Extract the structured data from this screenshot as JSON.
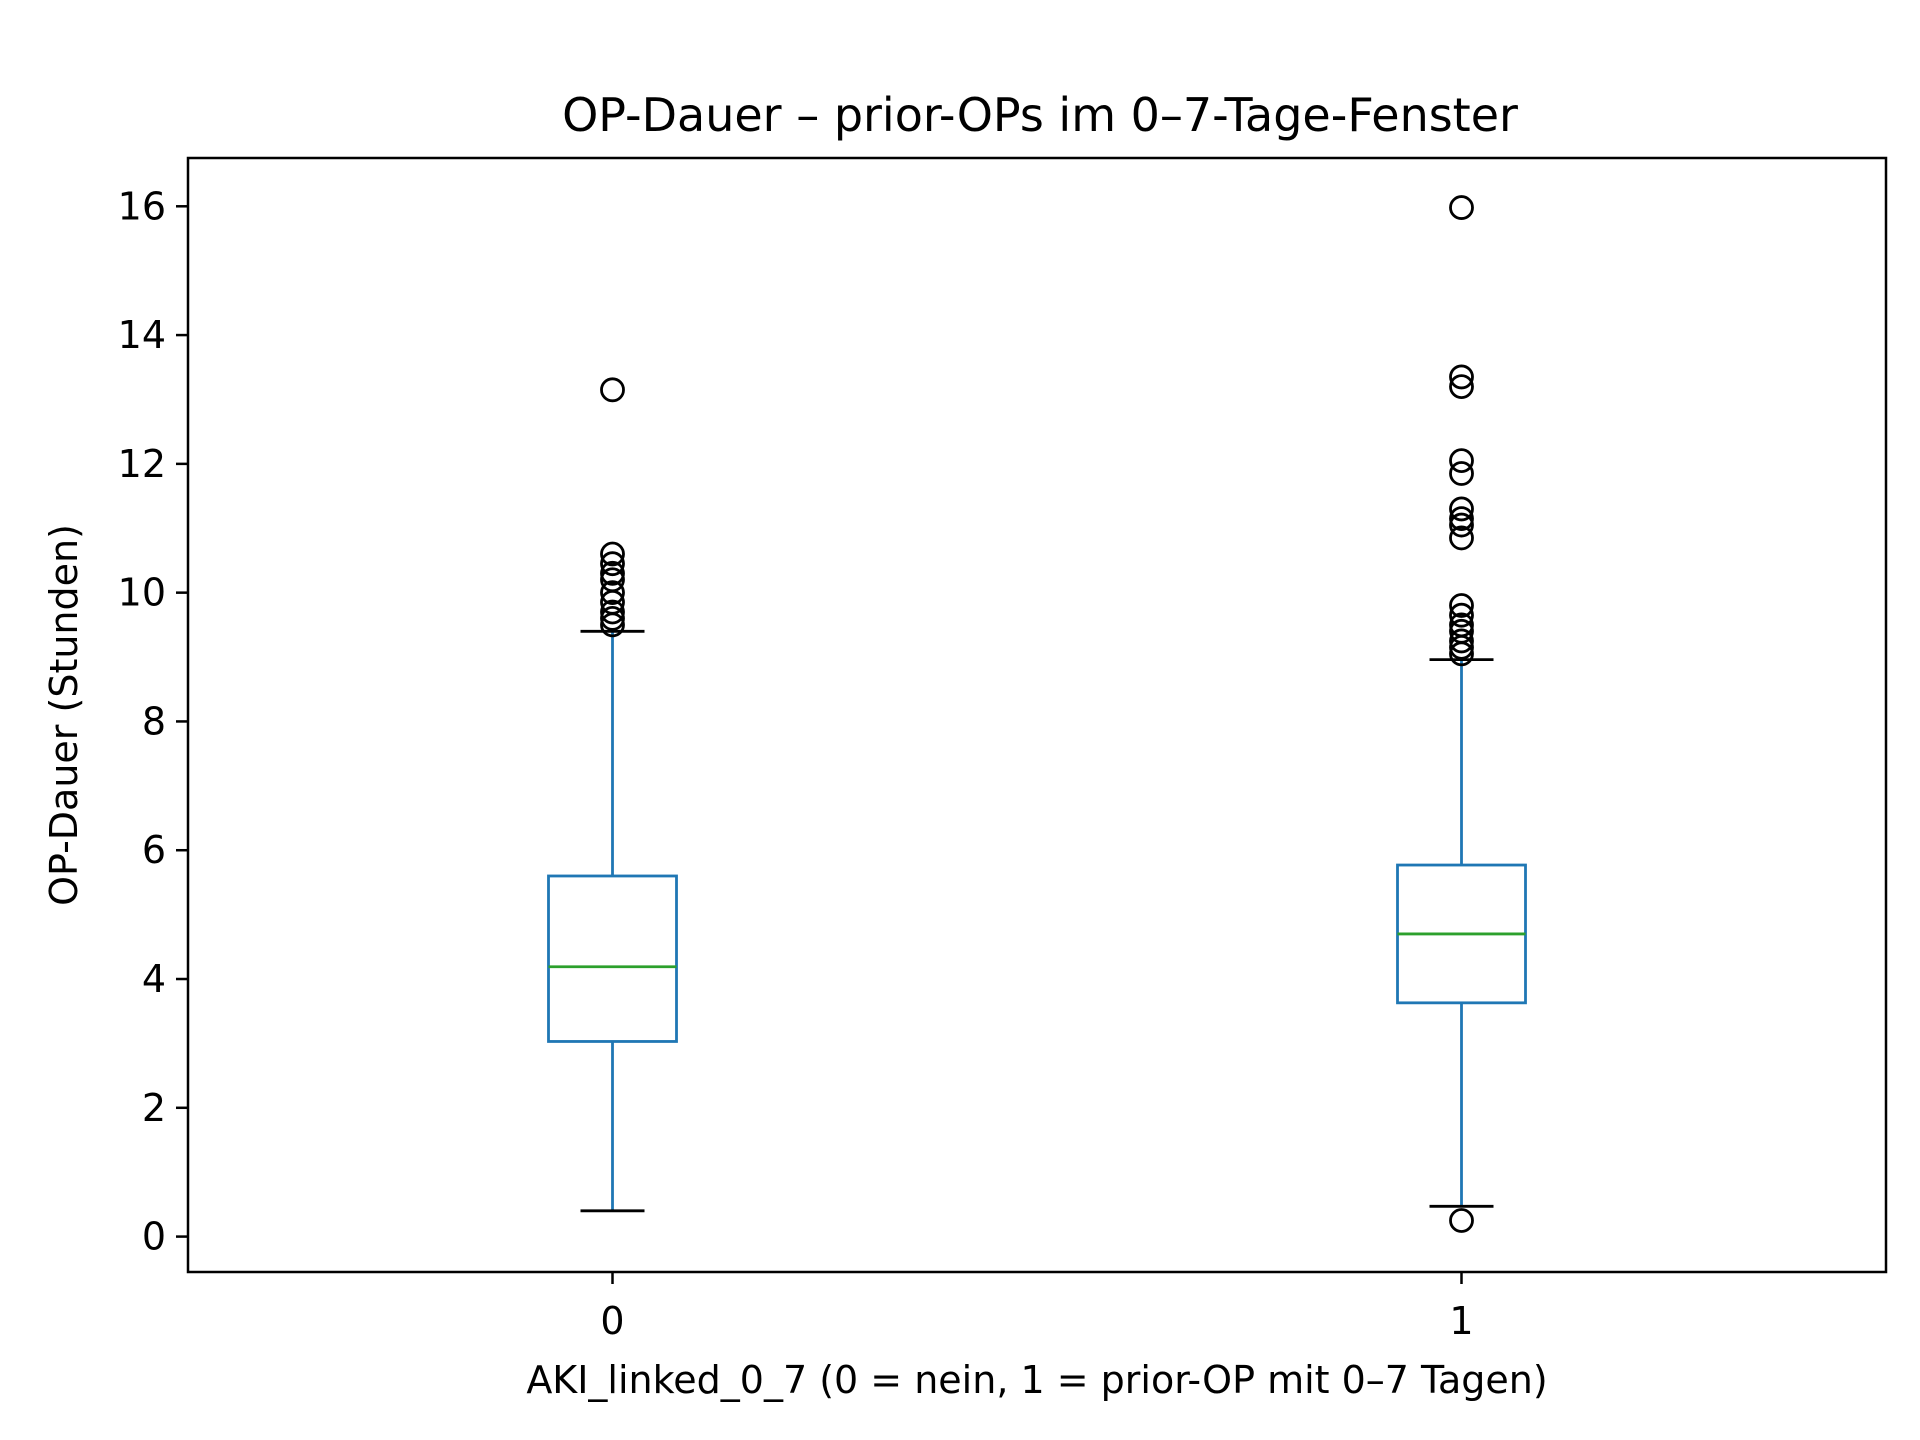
{
  "chart_data": {
    "type": "box",
    "title": "OP-Dauer – prior-OPs im 0–7-Tage-Fenster",
    "xlabel": "AKI_linked_0_7 (0 = nein, 1 = prior-OP mit 0–7 Tagen)",
    "ylabel": "OP-Dauer (Stunden)",
    "categories": [
      "0",
      "1"
    ],
    "ylim": [
      -0.55,
      16.75
    ],
    "yticks": [
      0,
      2,
      4,
      6,
      8,
      10,
      12,
      14,
      16
    ],
    "grid": false,
    "boxes": [
      {
        "category": "0",
        "whisker_low": 0.4,
        "q1": 3.03,
        "median": 4.19,
        "q3": 5.6,
        "whisker_high": 9.4,
        "outliers": [
          9.5,
          9.6,
          9.7,
          9.85,
          10.0,
          10.2,
          10.3,
          10.45,
          10.6,
          13.15
        ]
      },
      {
        "category": "1",
        "whisker_low": 0.47,
        "q1": 3.63,
        "median": 4.7,
        "q3": 5.77,
        "whisker_high": 8.96,
        "outliers": [
          0.25,
          9.05,
          9.15,
          9.25,
          9.4,
          9.5,
          9.65,
          9.8,
          10.85,
          11.05,
          11.15,
          11.3,
          11.85,
          12.05,
          13.2,
          13.35,
          15.98
        ]
      }
    ],
    "colors": {
      "box": "#1f77b4",
      "median": "#2ca02c",
      "caps": "#000000",
      "outlier": "#000000"
    }
  }
}
